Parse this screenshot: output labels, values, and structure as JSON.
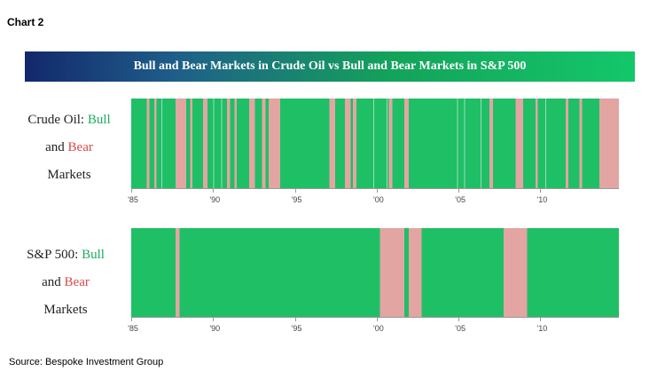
{
  "header": {
    "chart_label": "Chart 2",
    "title": "Bull and Bear Markets in Crude Oil vs Bull and Bear Markets in S&P 500"
  },
  "footer": {
    "source": "Source: Bespoke Investment Group"
  },
  "colors": {
    "bull": "#1fbf66",
    "bear": "#e3a5a2",
    "divider": "#9fd8b8"
  },
  "chart_data": [
    {
      "type": "timeline",
      "label": {
        "prefix": "Crude Oil:",
        "bull": "Bull",
        "and": "and",
        "bear": "Bear",
        "suffix": "Markets"
      },
      "xlim": [
        1985.0,
        2014.8
      ],
      "xticks": [
        1985,
        1990,
        1995,
        2000,
        2005,
        2010
      ],
      "xtick_labels": [
        "'85",
        "'90",
        "'95",
        "'00",
        "'05",
        "'10"
      ],
      "bear_periods": [
        [
          1985.95,
          1986.1
        ],
        [
          1986.4,
          1986.55
        ],
        [
          1987.7,
          1988.35
        ],
        [
          1988.6,
          1988.75
        ],
        [
          1989.4,
          1989.65
        ],
        [
          1990.85,
          1991.05
        ],
        [
          1991.3,
          1991.45
        ],
        [
          1992.2,
          1992.55
        ],
        [
          1993.0,
          1993.2
        ],
        [
          1993.4,
          1994.1
        ],
        [
          1997.1,
          1997.45
        ],
        [
          1998.05,
          1998.4
        ],
        [
          1998.55,
          1998.75
        ],
        [
          2000.75,
          2000.95
        ],
        [
          2001.7,
          2001.95
        ],
        [
          2006.9,
          2007.1
        ],
        [
          2008.5,
          2008.95
        ],
        [
          2009.7,
          2009.85
        ],
        [
          2011.55,
          2011.7
        ],
        [
          2012.4,
          2012.55
        ],
        [
          2013.6,
          2014.8
        ]
      ],
      "dividers": [
        1986.85,
        1990.0,
        1990.5,
        1999.8,
        2000.6,
        2004.9,
        2005.35,
        2006.35,
        2010.3
      ]
    },
    {
      "type": "timeline",
      "label": {
        "prefix": "S&P 500:",
        "bull": "Bull",
        "and": "and",
        "bear": "Bear",
        "suffix": "Markets"
      },
      "xlim": [
        1985.0,
        2014.8
      ],
      "xticks": [
        1985,
        1990,
        1995,
        2000,
        2005,
        2010
      ],
      "xtick_labels": [
        "'85",
        "'90",
        "'95",
        "'00",
        "'05",
        "'10"
      ],
      "bear_periods": [
        [
          1987.7,
          1987.95
        ],
        [
          2000.2,
          2001.7
        ],
        [
          2001.95,
          2002.75
        ],
        [
          2007.75,
          2009.2
        ]
      ],
      "dividers": []
    }
  ]
}
